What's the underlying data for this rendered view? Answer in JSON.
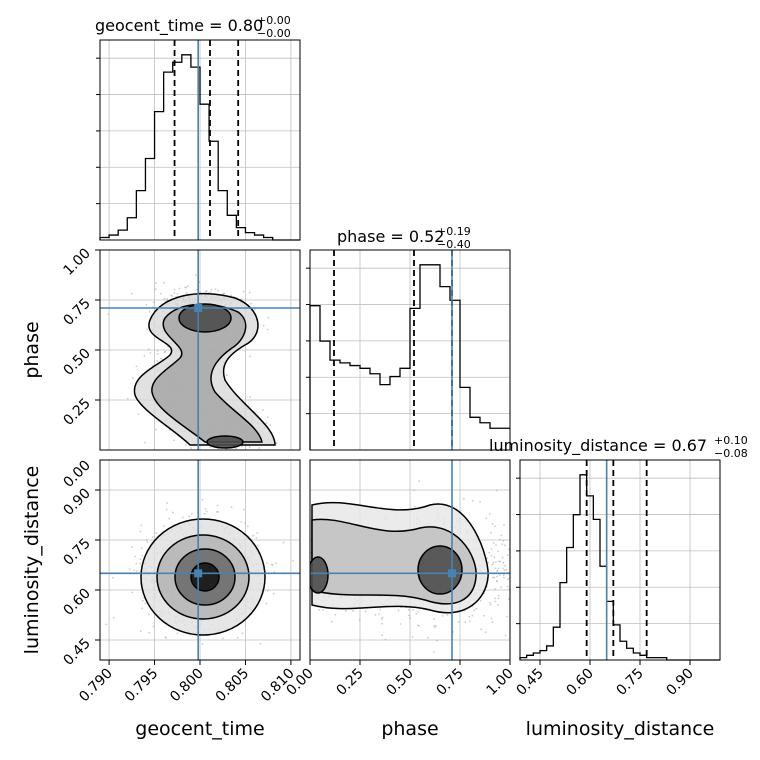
{
  "chart_data": {
    "type": "corner",
    "parameters": [
      "geocent_time",
      "phase",
      "luminosity_distance"
    ],
    "truths": {
      "geocent_time": 0.7998,
      "phase": 0.71,
      "luminosity_distance": 0.65
    },
    "ranges": {
      "geocent_time": [
        0.789,
        0.811
      ],
      "phase": [
        0.0,
        1.0
      ],
      "luminosity_distance": [
        0.39,
        0.99
      ]
    },
    "titles": {
      "geocent_time": {
        "text": "geocent_time = 0.80",
        "plus": "+0.00",
        "minus": "−0.00"
      },
      "phase": {
        "text": "phase = 0.52",
        "plus": "+0.19",
        "minus": "−0.40"
      },
      "luminosity_distance": {
        "text": "luminosity_distance = 0.67",
        "plus": "+0.10",
        "minus": "−0.08"
      }
    },
    "axis_labels": {
      "geocent_time": "geocent_time",
      "phase": "phase",
      "luminosity_distance": "luminosity_distance"
    },
    "x_ticks": {
      "geocent_time": [
        "0.790",
        "0.795",
        "0.800",
        "0.805",
        "0.810"
      ],
      "phase": [
        "0.00",
        "0.25",
        "0.50",
        "0.75",
        "1.00"
      ],
      "luminosity_distance": [
        "0.45",
        "0.60",
        "0.75",
        "0.90"
      ]
    },
    "y_ticks": {
      "phase": [
        "0.25",
        "0.50",
        "0.75",
        "1.00"
      ],
      "luminosity_distance": [
        "0.45",
        "0.60",
        "0.75",
        "0.90"
      ]
    },
    "y_ticks_row1_extra": [
      "0.00"
    ],
    "quantiles": {
      "geocent_time": [
        0.7972,
        0.8011,
        0.8042
      ],
      "phase": [
        0.12,
        0.52,
        0.71
      ],
      "luminosity_distance": [
        0.59,
        0.67,
        0.77
      ]
    },
    "histograms": {
      "geocent_time": {
        "edges_start": 0.789,
        "bin_width": 0.001,
        "counts": [
          1,
          2,
          4,
          9,
          20,
          33,
          52,
          68,
          72,
          75,
          70,
          55,
          40,
          20,
          10,
          5,
          3,
          2,
          1,
          0,
          0,
          0
        ]
      },
      "phase": {
        "edges_start": 0.0,
        "bin_width": 0.05,
        "counts": [
          53,
          40,
          33,
          32,
          31,
          30,
          28,
          24,
          27,
          30,
          52,
          68,
          68,
          60,
          55,
          23,
          12,
          10,
          8,
          8
        ]
      },
      "luminosity_distance": {
        "edges_start": 0.39,
        "bin_width": 0.02,
        "counts": [
          1,
          2,
          3,
          4,
          6,
          14,
          33,
          48,
          62,
          79,
          70,
          60,
          40,
          25,
          15,
          8,
          5,
          3,
          2,
          1,
          1,
          1,
          0,
          0,
          0,
          0,
          0,
          0,
          0,
          0
        ]
      }
    },
    "grid": true,
    "colors": {
      "truth": "#4682b4",
      "hist": "#000000",
      "quantile": "#000000",
      "density_dark": "#000000",
      "scatter": "#999999"
    }
  }
}
